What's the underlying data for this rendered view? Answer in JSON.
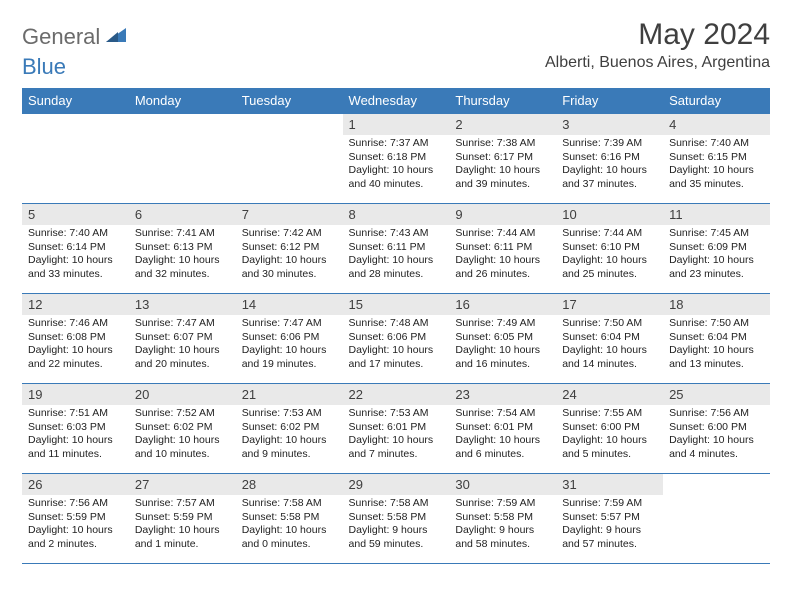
{
  "logo": {
    "text1": "General",
    "text2": "Blue"
  },
  "title": "May 2024",
  "location": "Alberti, Buenos Aires, Argentina",
  "colors": {
    "accent": "#3a7ab8",
    "daynum_bg": "#e9e9e9",
    "text": "#3f3f3f",
    "body_text": "#222222",
    "logo_gray": "#6b6b6b"
  },
  "daysOfWeek": [
    "Sunday",
    "Monday",
    "Tuesday",
    "Wednesday",
    "Thursday",
    "Friday",
    "Saturday"
  ],
  "weeks": [
    [
      null,
      null,
      null,
      {
        "n": "1",
        "sunrise": "Sunrise: 7:37 AM",
        "sunset": "Sunset: 6:18 PM",
        "daylight": "Daylight: 10 hours and 40 minutes."
      },
      {
        "n": "2",
        "sunrise": "Sunrise: 7:38 AM",
        "sunset": "Sunset: 6:17 PM",
        "daylight": "Daylight: 10 hours and 39 minutes."
      },
      {
        "n": "3",
        "sunrise": "Sunrise: 7:39 AM",
        "sunset": "Sunset: 6:16 PM",
        "daylight": "Daylight: 10 hours and 37 minutes."
      },
      {
        "n": "4",
        "sunrise": "Sunrise: 7:40 AM",
        "sunset": "Sunset: 6:15 PM",
        "daylight": "Daylight: 10 hours and 35 minutes."
      }
    ],
    [
      {
        "n": "5",
        "sunrise": "Sunrise: 7:40 AM",
        "sunset": "Sunset: 6:14 PM",
        "daylight": "Daylight: 10 hours and 33 minutes."
      },
      {
        "n": "6",
        "sunrise": "Sunrise: 7:41 AM",
        "sunset": "Sunset: 6:13 PM",
        "daylight": "Daylight: 10 hours and 32 minutes."
      },
      {
        "n": "7",
        "sunrise": "Sunrise: 7:42 AM",
        "sunset": "Sunset: 6:12 PM",
        "daylight": "Daylight: 10 hours and 30 minutes."
      },
      {
        "n": "8",
        "sunrise": "Sunrise: 7:43 AM",
        "sunset": "Sunset: 6:11 PM",
        "daylight": "Daylight: 10 hours and 28 minutes."
      },
      {
        "n": "9",
        "sunrise": "Sunrise: 7:44 AM",
        "sunset": "Sunset: 6:11 PM",
        "daylight": "Daylight: 10 hours and 26 minutes."
      },
      {
        "n": "10",
        "sunrise": "Sunrise: 7:44 AM",
        "sunset": "Sunset: 6:10 PM",
        "daylight": "Daylight: 10 hours and 25 minutes."
      },
      {
        "n": "11",
        "sunrise": "Sunrise: 7:45 AM",
        "sunset": "Sunset: 6:09 PM",
        "daylight": "Daylight: 10 hours and 23 minutes."
      }
    ],
    [
      {
        "n": "12",
        "sunrise": "Sunrise: 7:46 AM",
        "sunset": "Sunset: 6:08 PM",
        "daylight": "Daylight: 10 hours and 22 minutes."
      },
      {
        "n": "13",
        "sunrise": "Sunrise: 7:47 AM",
        "sunset": "Sunset: 6:07 PM",
        "daylight": "Daylight: 10 hours and 20 minutes."
      },
      {
        "n": "14",
        "sunrise": "Sunrise: 7:47 AM",
        "sunset": "Sunset: 6:06 PM",
        "daylight": "Daylight: 10 hours and 19 minutes."
      },
      {
        "n": "15",
        "sunrise": "Sunrise: 7:48 AM",
        "sunset": "Sunset: 6:06 PM",
        "daylight": "Daylight: 10 hours and 17 minutes."
      },
      {
        "n": "16",
        "sunrise": "Sunrise: 7:49 AM",
        "sunset": "Sunset: 6:05 PM",
        "daylight": "Daylight: 10 hours and 16 minutes."
      },
      {
        "n": "17",
        "sunrise": "Sunrise: 7:50 AM",
        "sunset": "Sunset: 6:04 PM",
        "daylight": "Daylight: 10 hours and 14 minutes."
      },
      {
        "n": "18",
        "sunrise": "Sunrise: 7:50 AM",
        "sunset": "Sunset: 6:04 PM",
        "daylight": "Daylight: 10 hours and 13 minutes."
      }
    ],
    [
      {
        "n": "19",
        "sunrise": "Sunrise: 7:51 AM",
        "sunset": "Sunset: 6:03 PM",
        "daylight": "Daylight: 10 hours and 11 minutes."
      },
      {
        "n": "20",
        "sunrise": "Sunrise: 7:52 AM",
        "sunset": "Sunset: 6:02 PM",
        "daylight": "Daylight: 10 hours and 10 minutes."
      },
      {
        "n": "21",
        "sunrise": "Sunrise: 7:53 AM",
        "sunset": "Sunset: 6:02 PM",
        "daylight": "Daylight: 10 hours and 9 minutes."
      },
      {
        "n": "22",
        "sunrise": "Sunrise: 7:53 AM",
        "sunset": "Sunset: 6:01 PM",
        "daylight": "Daylight: 10 hours and 7 minutes."
      },
      {
        "n": "23",
        "sunrise": "Sunrise: 7:54 AM",
        "sunset": "Sunset: 6:01 PM",
        "daylight": "Daylight: 10 hours and 6 minutes."
      },
      {
        "n": "24",
        "sunrise": "Sunrise: 7:55 AM",
        "sunset": "Sunset: 6:00 PM",
        "daylight": "Daylight: 10 hours and 5 minutes."
      },
      {
        "n": "25",
        "sunrise": "Sunrise: 7:56 AM",
        "sunset": "Sunset: 6:00 PM",
        "daylight": "Daylight: 10 hours and 4 minutes."
      }
    ],
    [
      {
        "n": "26",
        "sunrise": "Sunrise: 7:56 AM",
        "sunset": "Sunset: 5:59 PM",
        "daylight": "Daylight: 10 hours and 2 minutes."
      },
      {
        "n": "27",
        "sunrise": "Sunrise: 7:57 AM",
        "sunset": "Sunset: 5:59 PM",
        "daylight": "Daylight: 10 hours and 1 minute."
      },
      {
        "n": "28",
        "sunrise": "Sunrise: 7:58 AM",
        "sunset": "Sunset: 5:58 PM",
        "daylight": "Daylight: 10 hours and 0 minutes."
      },
      {
        "n": "29",
        "sunrise": "Sunrise: 7:58 AM",
        "sunset": "Sunset: 5:58 PM",
        "daylight": "Daylight: 9 hours and 59 minutes."
      },
      {
        "n": "30",
        "sunrise": "Sunrise: 7:59 AM",
        "sunset": "Sunset: 5:58 PM",
        "daylight": "Daylight: 9 hours and 58 minutes."
      },
      {
        "n": "31",
        "sunrise": "Sunrise: 7:59 AM",
        "sunset": "Sunset: 5:57 PM",
        "daylight": "Daylight: 9 hours and 57 minutes."
      },
      null
    ]
  ]
}
